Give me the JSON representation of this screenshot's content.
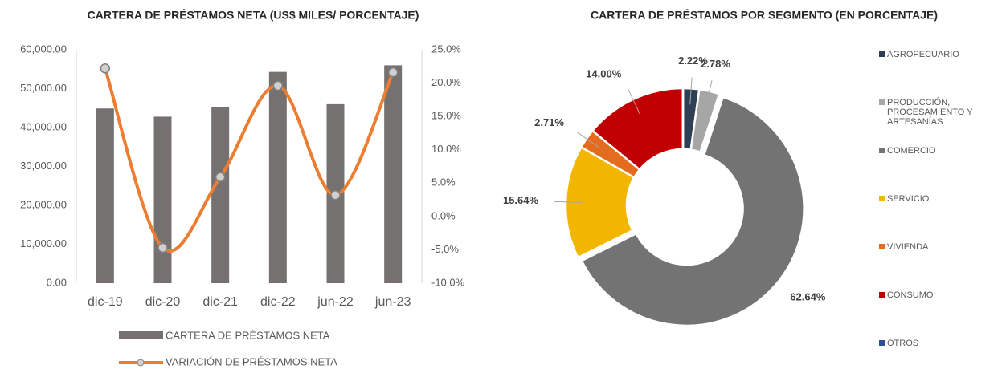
{
  "chart_data": [
    {
      "type": "bar_line",
      "title": "CARTERA DE PRÉSTAMOS NETA (US$ MILES/ PORCENTAJE)",
      "categories": [
        "dic-19",
        "dic-20",
        "dic-21",
        "dic-22",
        "jun-22",
        "jun-23"
      ],
      "series": [
        {
          "name": "CARTERA DE PRÉSTAMOS NETA",
          "color": "#767171",
          "values": [
            44900,
            42800,
            45300,
            54300,
            46000,
            56000
          ]
        },
        {
          "name": "VARIACIÓN DE PRÉSTAMOS NETA",
          "color": "#ed7d31",
          "axis": "y2",
          "values": [
            22.2,
            -4.7,
            5.9,
            19.6,
            3.2,
            21.6
          ]
        }
      ],
      "ylim": [
        0,
        60000
      ],
      "yticks": [
        {
          "value": 0,
          "label": "0.00"
        },
        {
          "value": 10000,
          "label": "10,000.00"
        },
        {
          "value": 20000,
          "label": "20,000.00"
        },
        {
          "value": 30000,
          "label": "30,000.00"
        },
        {
          "value": 40000,
          "label": "40,000.00"
        },
        {
          "value": 50000,
          "label": "50,000.00"
        },
        {
          "value": 60000,
          "label": "60,000.00"
        }
      ],
      "y2lim": [
        -10,
        25
      ],
      "y2ticks": [
        {
          "value": -10,
          "label": "-10.0%"
        },
        {
          "value": -5,
          "label": "-5.0%"
        },
        {
          "value": 0,
          "label": "0.0%"
        },
        {
          "value": 5,
          "label": "5.0%"
        },
        {
          "value": 10,
          "label": "10.0%"
        },
        {
          "value": 15,
          "label": "15.0%"
        },
        {
          "value": 20,
          "label": "20.0%"
        },
        {
          "value": 25,
          "label": "25.0%"
        }
      ]
    },
    {
      "type": "donut",
      "title": "CARTERA DE PRÉSTAMOS POR SEGMENTO (EN PORCENTAJE)",
      "categories": [
        "AGROPECUARIO",
        "PRODUCCIÓN, PROCESAMIENTO Y ARTESANÍAS",
        "COMERCIO",
        "SERVICIO",
        "VIVIENDA",
        "CONSUMO",
        "OTROS"
      ],
      "values": [
        2.22,
        2.78,
        62.64,
        15.64,
        2.71,
        14.0,
        0.01
      ],
      "value_labels": [
        "2.22%",
        "2.78%",
        "62.64%",
        "15.64%",
        "2.71%",
        "14.00%",
        null
      ],
      "colors": [
        "#2e3f55",
        "#a6a6a6",
        "#737373",
        "#f2b600",
        "#e46c1e",
        "#c00000",
        "#2f4f8f"
      ]
    }
  ]
}
